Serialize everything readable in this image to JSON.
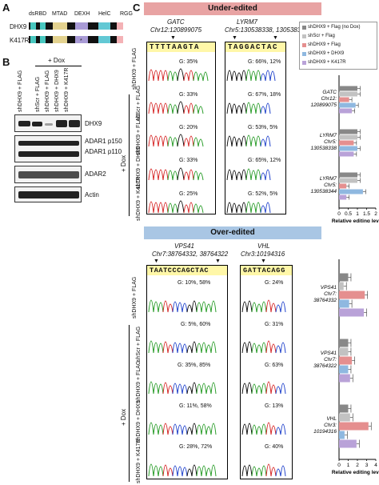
{
  "panels": {
    "a": "A",
    "b": "B",
    "c": "C"
  },
  "domains": {
    "labels": [
      "dsRBD",
      "MTAD",
      "DEXH",
      "HelC",
      "RGG"
    ],
    "rows": [
      "DHX9",
      "K417R"
    ]
  },
  "panel_b": {
    "dox": "+ Dox",
    "lanes": [
      "shDHX9 + FLAG",
      "shScr + FLAG",
      "shDHX9 + FLAG",
      "shDHX9 + DHX9",
      "shDHX9 + K417R"
    ],
    "blots": [
      "DHX9",
      "ADAR1 p150",
      "ADAR1 p110",
      "ADAR2",
      "Actin"
    ]
  },
  "colors": {
    "under_header": "#e8a3a3",
    "over_header": "#a9c6e4",
    "flag_nodox": "#888888",
    "scr": "#c2c2c2",
    "flag": "#e58f8f",
    "dhx9": "#8fb8e0",
    "k417r": "#b9a2d8"
  },
  "under": {
    "title": "Under-edited",
    "gatc": {
      "name": "GATC",
      "loc": "Chr12:120899075",
      "seq": "TTTTAAGTA",
      "values": [
        "G: 35%",
        "G: 33%",
        "G: 20%",
        "G: 33%",
        "G: 25%"
      ]
    },
    "lyrm7": {
      "name": "LYRM7",
      "loc": "Chr5:130538338, 130538344",
      "seq": "TAGGACTAC",
      "values": [
        "G: 66%, 12%",
        "G: 67%, 18%",
        "G: 53%, 5%",
        "G: 65%, 12%",
        "G: 52%, 5%"
      ]
    },
    "rowlabels": [
      "shDHX9 + FLAG",
      "shScr + FLAG",
      "shDHX9 + FLAG",
      "shDHX9 + DHX9",
      "shDHX9 + K417R"
    ],
    "dox": "+ Dox"
  },
  "over": {
    "title": "Over-edited",
    "vps41": {
      "name": "VPS41",
      "loc": "Chr7:38764332, 38764322",
      "seq": "TAATCCCAGCTAC",
      "values": [
        "G: 10%, 58%",
        "G: 5%, 60%",
        "G: 35%, 85%",
        "G: 11%, 58%",
        "G: 28%, 72%"
      ]
    },
    "vhl": {
      "name": "VHL",
      "loc": "Chr3:10194316",
      "seq": "GATTACAGG",
      "values": [
        "G: 24%",
        "G: 31%",
        "G: 63%",
        "G: 13%",
        "G: 40%"
      ]
    },
    "rowlabels": [
      "shDHX9 + FLAG",
      "shScr + FLAG",
      "shDHX9 + FLAG",
      "shDHX9 + DHX9",
      "shDHX9 + K417R"
    ],
    "dox": "+ Dox"
  },
  "legend": [
    "shDHX9 + Flag (no Dox)",
    "shScr + Flag",
    "shDHX9 + Flag",
    "shDHX9 + DHX9",
    "shDHX9 + K417R"
  ],
  "chart_data": [
    {
      "type": "bar",
      "orientation": "horizontal",
      "xlabel": "Relative editing level",
      "xlim": [
        0,
        2
      ],
      "ticks": [
        "0",
        "0.5",
        "1",
        "1.5",
        "2"
      ],
      "groups": [
        {
          "label": [
            "GATC",
            "Chr12:",
            "120899075"
          ],
          "values": [
            1.0,
            1.0,
            0.55,
            0.9,
            0.7
          ]
        },
        {
          "label": [
            "LYRM7",
            "Chr5:",
            "130538338"
          ],
          "values": [
            1.0,
            1.0,
            0.8,
            1.0,
            0.8
          ]
        },
        {
          "label": [
            "LYRM7",
            "Chr5:",
            "130538344"
          ],
          "values": [
            1.0,
            1.0,
            0.4,
            1.3,
            0.4
          ]
        }
      ]
    },
    {
      "type": "bar",
      "orientation": "horizontal",
      "xlabel": "Relative editing level",
      "xlim": [
        0,
        4
      ],
      "ticks": [
        "0",
        "1",
        "2",
        "3",
        "4"
      ],
      "groups": [
        {
          "label": [
            "VPS41",
            "Chr7:",
            "38764332"
          ],
          "values": [
            1.0,
            0.5,
            2.8,
            1.1,
            2.7
          ]
        },
        {
          "label": [
            "VPS41",
            "Chr7:",
            "38764322"
          ],
          "values": [
            1.0,
            1.0,
            1.4,
            1.0,
            1.2
          ]
        },
        {
          "label": [
            "VHL",
            "Chr3:",
            "10194316"
          ],
          "values": [
            1.0,
            1.2,
            3.2,
            0.6,
            1.9
          ]
        }
      ]
    }
  ]
}
